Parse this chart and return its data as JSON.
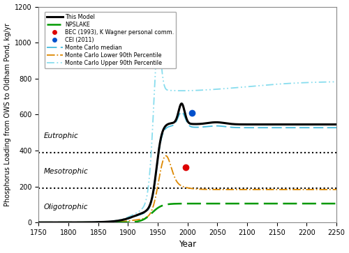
{
  "xlim": [
    1750,
    2250
  ],
  "ylim": [
    0,
    1200
  ],
  "yticks": [
    0,
    200,
    400,
    600,
    800,
    1000,
    1200
  ],
  "xticks": [
    1750,
    1800,
    1850,
    1900,
    1950,
    2000,
    2050,
    2100,
    2150,
    2200,
    2250
  ],
  "xlabel": "Year",
  "ylabel": "Phosphorus Loading from OWS to Oldham Pond, kg/yr",
  "hline1": 390,
  "hline2": 190,
  "label_eutrophic": "Eutrophic",
  "label_mesotrophic": "Mesotrophic",
  "label_oligotrophic": "Oligotrophic",
  "bec_point": [
    1997,
    305
  ],
  "cei_point": [
    2007,
    610
  ],
  "bec_color": "#dd0000",
  "cei_color": "#0050cc",
  "this_model_color": "#000000",
  "npslake_color": "#009900",
  "mc_median_color": "#44bbdd",
  "mc_lower_color": "#dd8800",
  "mc_upper_color": "#88ddee"
}
